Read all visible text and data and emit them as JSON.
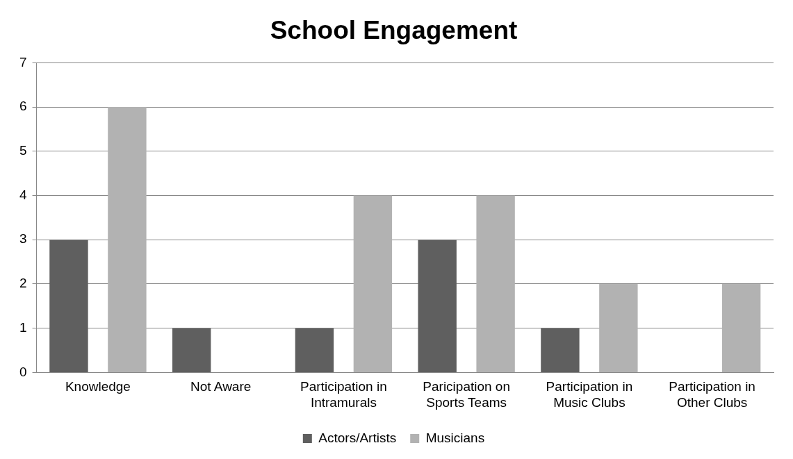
{
  "chart_data": {
    "type": "bar",
    "title": "School Engagement",
    "categories": [
      "Knowledge",
      "Not Aware",
      "Participation in Intramurals",
      "Paricipation on Sports Teams",
      "Participation in Music Clubs",
      "Participation in Other Clubs"
    ],
    "series": [
      {
        "name": "Actors/Artists",
        "color": "#5f5f5f",
        "values": [
          3,
          1,
          1,
          3,
          1,
          0
        ]
      },
      {
        "name": "Musicians",
        "color": "#b2b2b2",
        "values": [
          6,
          0,
          4,
          4,
          2,
          2
        ]
      }
    ],
    "ylim": [
      0,
      7
    ],
    "yticks": [
      0,
      1,
      2,
      3,
      4,
      5,
      6,
      7
    ],
    "grid": "y",
    "legend": "bottom"
  }
}
